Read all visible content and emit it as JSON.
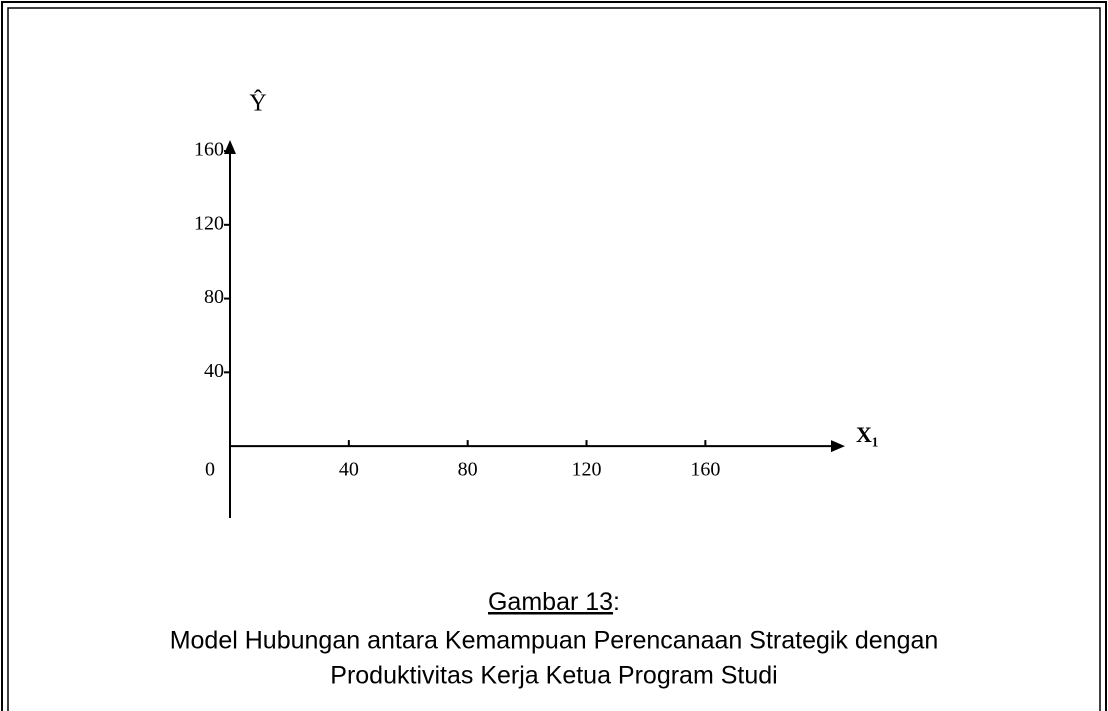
{
  "chart_data": {
    "type": "line",
    "y_label": "Ŷ",
    "x_label": "X₁",
    "xlim": [
      0,
      207
    ],
    "ylim": [
      -39,
      166
    ],
    "xticks": [
      0,
      40,
      80,
      120,
      160
    ],
    "yticks": [
      40,
      80,
      120,
      160
    ],
    "series": [],
    "caption_label": "Gambar 13",
    "caption_suffix": ":",
    "caption_lines": [
      "Model Hubungan antara Kemampuan Perencanaan Strategik dengan",
      "Produktivitas Kerja Ketua Program Studi"
    ]
  }
}
